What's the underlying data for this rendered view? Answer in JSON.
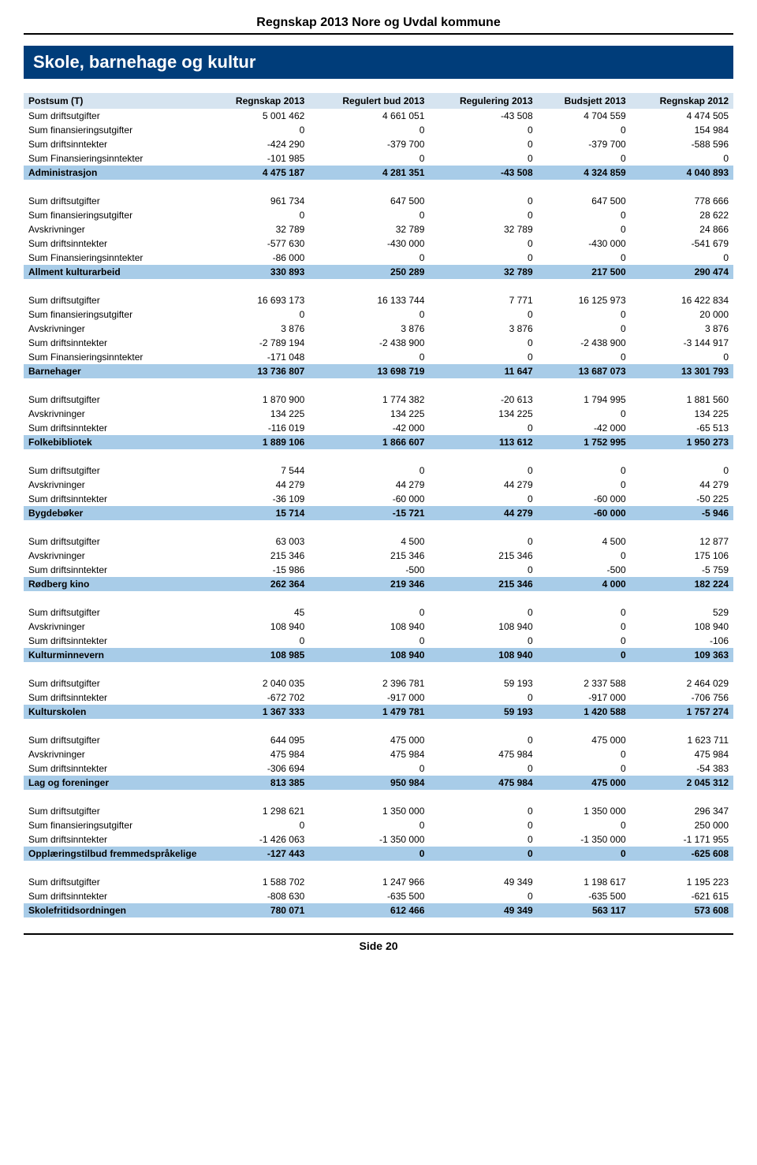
{
  "doc_title": "Regnskap 2013 Nore og Uvdal kommune",
  "section_title": "Skole, barnehage og kultur",
  "footer": "Side 20",
  "columns": [
    "Postsum (T)",
    "Regnskap 2013",
    "Regulert bud 2013",
    "Regulering 2013",
    "Budsjett 2013",
    "Regnskap 2012"
  ],
  "groups": [
    {
      "rows": [
        [
          "Sum driftsutgifter",
          "5 001 462",
          "4 661 051",
          "-43 508",
          "4 704 559",
          "4 474 505"
        ],
        [
          "Sum finansieringsutgifter",
          "0",
          "0",
          "0",
          "0",
          "154 984"
        ],
        [
          "Sum driftsinntekter",
          "-424 290",
          "-379 700",
          "0",
          "-379 700",
          "-588 596"
        ],
        [
          "Sum Finansieringsinntekter",
          "-101 985",
          "0",
          "0",
          "0",
          "0"
        ]
      ],
      "subtotal": [
        "Administrasjon",
        "4 475 187",
        "4 281 351",
        "-43 508",
        "4 324 859",
        "4 040 893"
      ]
    },
    {
      "rows": [
        [
          "Sum driftsutgifter",
          "961 734",
          "647 500",
          "0",
          "647 500",
          "778 666"
        ],
        [
          "Sum finansieringsutgifter",
          "0",
          "0",
          "0",
          "0",
          "28 622"
        ],
        [
          "Avskrivninger",
          "32 789",
          "32 789",
          "32 789",
          "0",
          "24 866"
        ],
        [
          "Sum driftsinntekter",
          "-577 630",
          "-430 000",
          "0",
          "-430 000",
          "-541 679"
        ],
        [
          "Sum Finansieringsinntekter",
          "-86 000",
          "0",
          "0",
          "0",
          "0"
        ]
      ],
      "subtotal": [
        "Allment kulturarbeid",
        "330 893",
        "250 289",
        "32 789",
        "217 500",
        "290 474"
      ]
    },
    {
      "rows": [
        [
          "Sum driftsutgifter",
          "16 693 173",
          "16 133 744",
          "7 771",
          "16 125 973",
          "16 422 834"
        ],
        [
          "Sum finansieringsutgifter",
          "0",
          "0",
          "0",
          "0",
          "20 000"
        ],
        [
          "Avskrivninger",
          "3 876",
          "3 876",
          "3 876",
          "0",
          "3 876"
        ],
        [
          "Sum driftsinntekter",
          "-2 789 194",
          "-2 438 900",
          "0",
          "-2 438 900",
          "-3 144 917"
        ],
        [
          "Sum Finansieringsinntekter",
          "-171 048",
          "0",
          "0",
          "0",
          "0"
        ]
      ],
      "subtotal": [
        "Barnehager",
        "13 736 807",
        "13 698 719",
        "11 647",
        "13 687 073",
        "13 301 793"
      ]
    },
    {
      "rows": [
        [
          "Sum driftsutgifter",
          "1 870 900",
          "1 774 382",
          "-20 613",
          "1 794 995",
          "1 881 560"
        ],
        [
          "Avskrivninger",
          "134 225",
          "134 225",
          "134 225",
          "0",
          "134 225"
        ],
        [
          "Sum driftsinntekter",
          "-116 019",
          "-42 000",
          "0",
          "-42 000",
          "-65 513"
        ]
      ],
      "subtotal": [
        "Folkebibliotek",
        "1 889 106",
        "1 866 607",
        "113 612",
        "1 752 995",
        "1 950 273"
      ]
    },
    {
      "rows": [
        [
          "Sum driftsutgifter",
          "7 544",
          "0",
          "0",
          "0",
          "0"
        ],
        [
          "Avskrivninger",
          "44 279",
          "44 279",
          "44 279",
          "0",
          "44 279"
        ],
        [
          "Sum driftsinntekter",
          "-36 109",
          "-60 000",
          "0",
          "-60 000",
          "-50 225"
        ]
      ],
      "subtotal": [
        "Bygdebøker",
        "15 714",
        "-15 721",
        "44 279",
        "-60 000",
        "-5 946"
      ]
    },
    {
      "rows": [
        [
          "Sum driftsutgifter",
          "63 003",
          "4 500",
          "0",
          "4 500",
          "12 877"
        ],
        [
          "Avskrivninger",
          "215 346",
          "215 346",
          "215 346",
          "0",
          "175 106"
        ],
        [
          "Sum driftsinntekter",
          "-15 986",
          "-500",
          "0",
          "-500",
          "-5 759"
        ]
      ],
      "subtotal": [
        "Rødberg kino",
        "262 364",
        "219 346",
        "215 346",
        "4 000",
        "182 224"
      ]
    },
    {
      "rows": [
        [
          "Sum driftsutgifter",
          "45",
          "0",
          "0",
          "0",
          "529"
        ],
        [
          "Avskrivninger",
          "108 940",
          "108 940",
          "108 940",
          "0",
          "108 940"
        ],
        [
          "Sum driftsinntekter",
          "0",
          "0",
          "0",
          "0",
          "-106"
        ]
      ],
      "subtotal": [
        "Kulturminnevern",
        "108 985",
        "108 940",
        "108 940",
        "0",
        "109 363"
      ]
    },
    {
      "rows": [
        [
          "Sum driftsutgifter",
          "2 040 035",
          "2 396 781",
          "59 193",
          "2 337 588",
          "2 464 029"
        ],
        [
          "Sum driftsinntekter",
          "-672 702",
          "-917 000",
          "0",
          "-917 000",
          "-706 756"
        ]
      ],
      "subtotal": [
        "Kulturskolen",
        "1 367 333",
        "1 479 781",
        "59 193",
        "1 420 588",
        "1 757 274"
      ]
    },
    {
      "rows": [
        [
          "Sum driftsutgifter",
          "644 095",
          "475 000",
          "0",
          "475 000",
          "1 623 711"
        ],
        [
          "Avskrivninger",
          "475 984",
          "475 984",
          "475 984",
          "0",
          "475 984"
        ],
        [
          "Sum driftsinntekter",
          "-306 694",
          "0",
          "0",
          "0",
          "-54 383"
        ]
      ],
      "subtotal": [
        "Lag og foreninger",
        "813 385",
        "950 984",
        "475 984",
        "475 000",
        "2 045 312"
      ]
    },
    {
      "rows": [
        [
          "Sum driftsutgifter",
          "1 298 621",
          "1 350 000",
          "0",
          "1 350 000",
          "296 347"
        ],
        [
          "Sum finansieringsutgifter",
          "0",
          "0",
          "0",
          "0",
          "250 000"
        ],
        [
          "Sum driftsinntekter",
          "-1 426 063",
          "-1 350 000",
          "0",
          "-1 350 000",
          "-1 171 955"
        ]
      ],
      "subtotal": [
        "Opplæringstilbud fremmedspråkelige",
        "-127 443",
        "0",
        "0",
        "0",
        "-625 608"
      ]
    },
    {
      "rows": [
        [
          "Sum driftsutgifter",
          "1 588 702",
          "1 247 966",
          "49 349",
          "1 198 617",
          "1 195 223"
        ],
        [
          "Sum driftsinntekter",
          "-808 630",
          "-635 500",
          "0",
          "-635 500",
          "-621 615"
        ]
      ],
      "subtotal": [
        "Skolefritidsordningen",
        "780 071",
        "612 466",
        "49 349",
        "563 117",
        "573 608"
      ]
    }
  ]
}
